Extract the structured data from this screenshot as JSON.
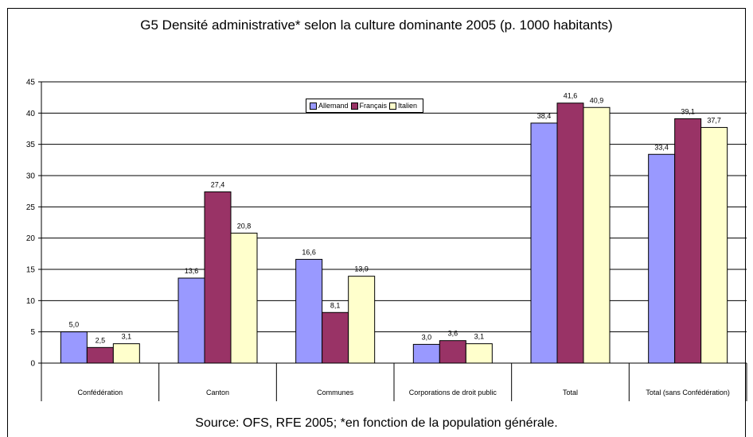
{
  "chart_data": {
    "type": "bar",
    "title": "G5 Densité administrative* selon la culture dominante 2005 (p. 1000 habitants)",
    "source": "Source:  OFS, RFE 2005; *en fonction de la population générale.",
    "categories": [
      "Confédération",
      "Canton",
      "Communes",
      "Corporations de droit public",
      "Total",
      "Total (sans Confédération)"
    ],
    "series": [
      {
        "name": "Allemand",
        "color": "#9999ff",
        "values": [
          5.0,
          13.6,
          16.6,
          3.0,
          38.4,
          33.4
        ],
        "labels": [
          "5,0",
          "13,6",
          "16,6",
          "3,0",
          "38,4",
          "33,4"
        ]
      },
      {
        "name": "Français",
        "color": "#993366",
        "values": [
          2.5,
          27.4,
          8.1,
          3.6,
          41.6,
          39.1
        ],
        "labels": [
          "2,5",
          "27,4",
          "8,1",
          "3,6",
          "41,6",
          "39,1"
        ]
      },
      {
        "name": "Italien",
        "color": "#ffffcc",
        "values": [
          3.1,
          20.8,
          13.9,
          3.1,
          40.9,
          37.7
        ],
        "labels": [
          "3,1",
          "20,8",
          "13,9",
          "3,1",
          "40,9",
          "37,7"
        ]
      }
    ],
    "ylim": [
      0,
      45
    ],
    "yticks": [
      0,
      5,
      10,
      15,
      20,
      25,
      30,
      35,
      40,
      45
    ],
    "grid": true,
    "legend_position": "top-center",
    "xlabel": "",
    "ylabel": ""
  }
}
